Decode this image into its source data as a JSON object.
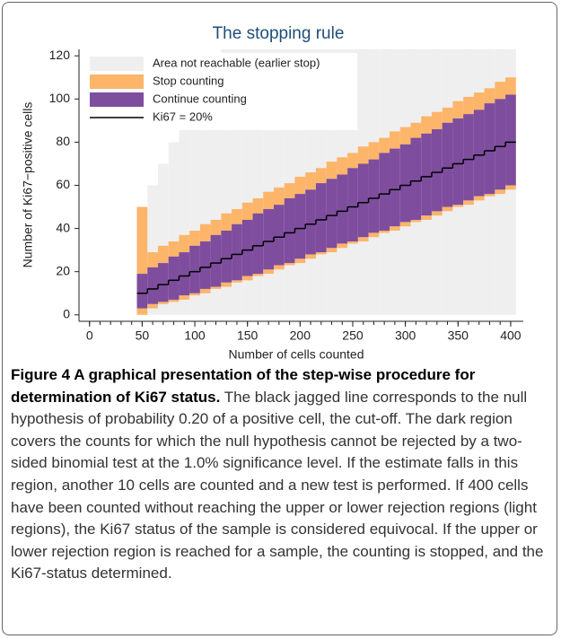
{
  "chart_data": {
    "type": "step-band",
    "title": "The stopping rule",
    "x_label": "Number of cells counted",
    "y_label": "Number of Ki67−positive cells",
    "legend": "top-left",
    "x": [
      50,
      60,
      70,
      80,
      90,
      100,
      110,
      120,
      130,
      140,
      150,
      160,
      170,
      180,
      190,
      200,
      210,
      220,
      230,
      240,
      250,
      260,
      270,
      280,
      290,
      300,
      310,
      320,
      330,
      340,
      350,
      360,
      370,
      380,
      390,
      400
    ],
    "series": [
      {
        "name": "Area not reachable (earlier stop)",
        "color": "#efefef"
      },
      {
        "name": "Stop counting",
        "color": "#fdb56a",
        "low": [
          0,
          3,
          5,
          6,
          7,
          9,
          10,
          12,
          13,
          15,
          16,
          18,
          19,
          21,
          23,
          24,
          26,
          28,
          29,
          31,
          33,
          34,
          36,
          38,
          39,
          41,
          43,
          44,
          46,
          48,
          50,
          51,
          53,
          55,
          56,
          58
        ],
        "high": [
          50,
          29,
          32,
          34,
          37,
          39,
          42,
          44,
          47,
          49,
          52,
          54,
          57,
          59,
          61,
          64,
          66,
          68,
          71,
          73,
          75,
          78,
          80,
          82,
          85,
          87,
          89,
          92,
          94,
          96,
          99,
          101,
          103,
          105,
          108,
          110
        ]
      },
      {
        "name": "Continue counting",
        "color": "#7e4d9e",
        "low": [
          3,
          5,
          6,
          7,
          9,
          10,
          12,
          13,
          15,
          16,
          18,
          19,
          21,
          23,
          24,
          26,
          28,
          29,
          31,
          33,
          34,
          36,
          38,
          39,
          41,
          43,
          44,
          46,
          48,
          50,
          51,
          53,
          55,
          56,
          58,
          60
        ],
        "high": [
          19,
          22,
          24,
          27,
          29,
          32,
          34,
          37,
          39,
          42,
          44,
          47,
          49,
          51,
          54,
          56,
          58,
          61,
          63,
          65,
          68,
          70,
          72,
          75,
          77,
          79,
          82,
          84,
          86,
          89,
          91,
          93,
          95,
          98,
          100,
          102
        ]
      },
      {
        "name": "Ki67 = 20%",
        "color": "#000000",
        "values": [
          10,
          12,
          14,
          16,
          18,
          20,
          22,
          24,
          26,
          28,
          30,
          32,
          34,
          36,
          38,
          40,
          42,
          44,
          46,
          48,
          50,
          52,
          54,
          56,
          58,
          60,
          62,
          64,
          66,
          68,
          70,
          72,
          74,
          76,
          78,
          80
        ]
      }
    ],
    "xlim": [
      -10,
      412
    ],
    "ylim": [
      -3,
      123
    ],
    "xticks": [
      0,
      50,
      100,
      150,
      200,
      250,
      300,
      350,
      400
    ],
    "xminorticks": [
      0,
      10,
      20,
      30,
      40,
      50,
      60,
      70,
      80,
      90,
      100,
      110,
      120,
      130,
      140,
      150,
      160,
      170,
      180,
      190,
      200,
      210,
      220,
      230,
      240,
      250,
      260,
      270,
      280,
      290,
      300,
      310,
      320,
      330,
      340,
      350,
      360,
      370,
      380,
      390,
      400
    ],
    "yticks": [
      0,
      20,
      40,
      60,
      80,
      100,
      120
    ]
  },
  "caption": {
    "label": "Figure 4",
    "title": "A graphical presentation of the step-wise procedure for determination of Ki67 status.",
    "text": "The black jagged line corresponds to the null hypothesis of probability 0.20 of a positive cell, the cut-off. The dark region covers the counts for which the null hypothesis cannot be rejected by a two-sided binomial test at the 1.0% significance level. If the estimate falls in this region, another 10 cells are counted and a new test is performed. If 400 cells have been counted without reaching the upper or lower rejection regions (light regions), the Ki67 status of the sample is considered equivocal. If the upper or lower rejection region is reached for a sample, the counting is stopped, and the Ki67-status determined."
  }
}
